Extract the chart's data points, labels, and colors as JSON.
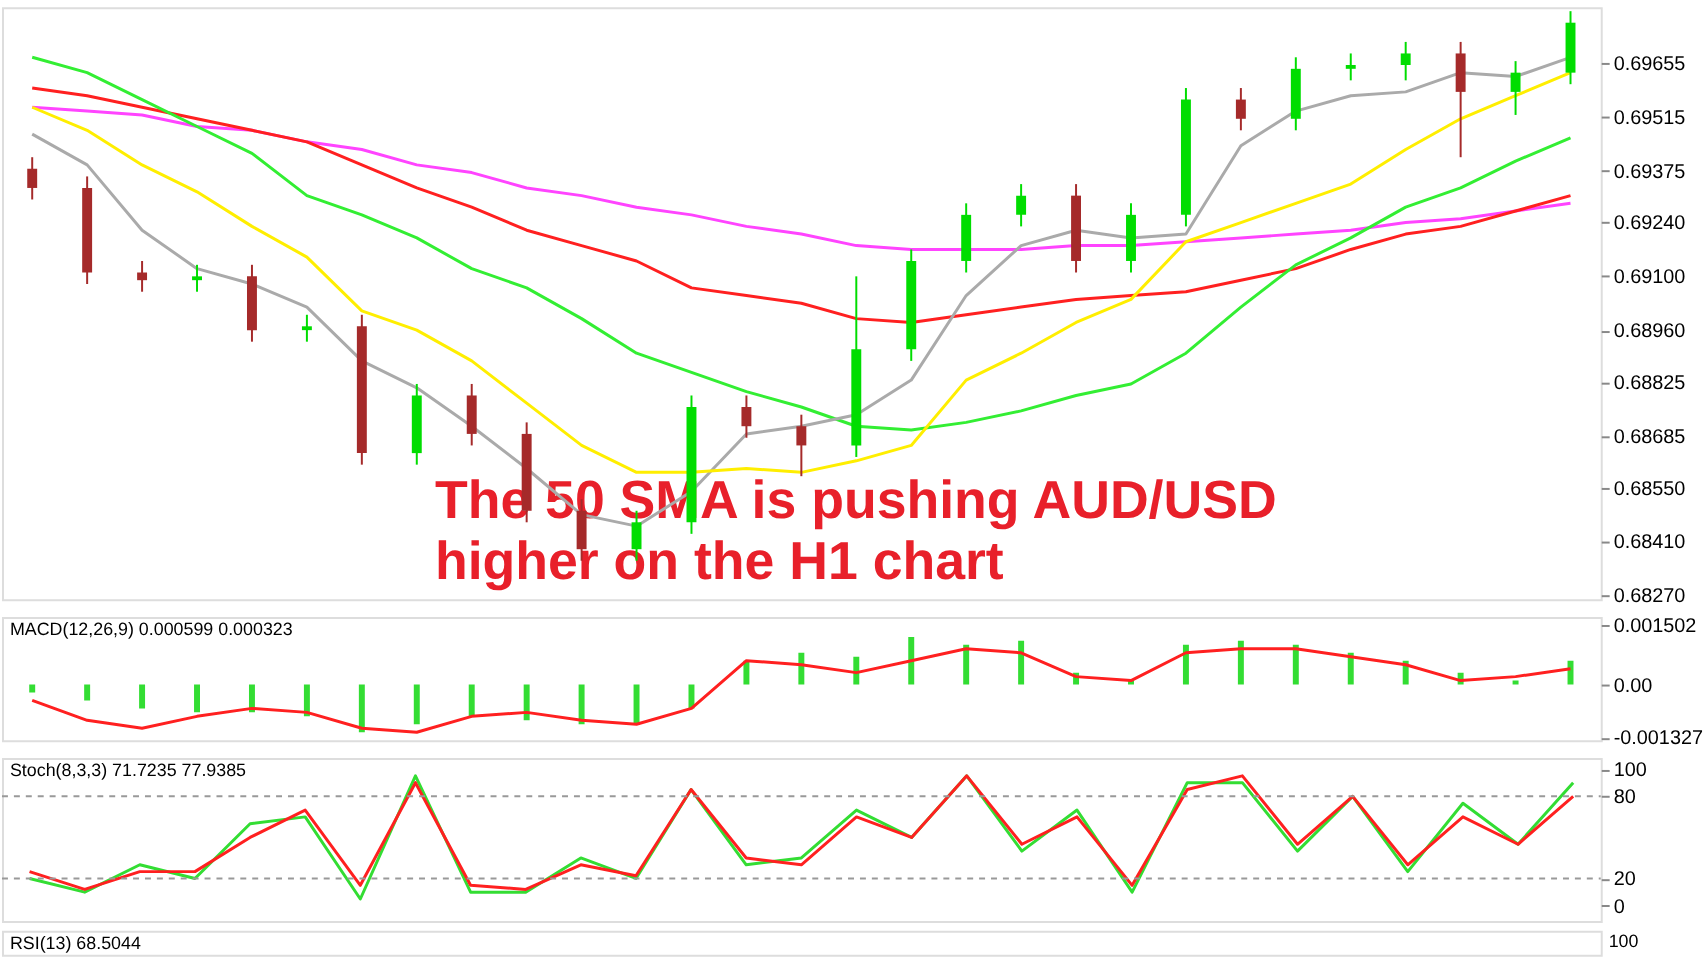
{
  "chart_data": [
    {
      "type": "candlestick",
      "categories": [
        null,
        null,
        null,
        null,
        null,
        null,
        null,
        null,
        null,
        null,
        null,
        null,
        null,
        null,
        null,
        null,
        null,
        null,
        null,
        null,
        null,
        null,
        null,
        null,
        null,
        null,
        null,
        null,
        null
      ],
      "ohlc": [
        [
          0.6938,
          0.6941,
          0.693,
          0.6933
        ],
        [
          0.6933,
          0.6936,
          0.6908,
          0.6911
        ],
        [
          0.6911,
          0.6914,
          0.6906,
          0.6909
        ],
        [
          0.6909,
          0.6913,
          0.6906,
          0.691
        ],
        [
          0.691,
          0.6913,
          0.6893,
          0.6896
        ],
        [
          0.6896,
          0.69,
          0.6893,
          0.6897
        ],
        [
          0.6897,
          0.69,
          0.6861,
          0.6864
        ],
        [
          0.6864,
          0.6882,
          0.6861,
          0.6879
        ],
        [
          0.6879,
          0.6882,
          0.6866,
          0.6869
        ],
        [
          0.6869,
          0.6872,
          0.6846,
          0.6849
        ],
        [
          0.6849,
          0.6852,
          0.6836,
          0.6839
        ],
        [
          0.6839,
          0.6849,
          0.6836,
          0.6846
        ],
        [
          0.6846,
          0.6879,
          0.6843,
          0.6876
        ],
        [
          0.6876,
          0.6879,
          0.6868,
          0.6871
        ],
        [
          0.6871,
          0.6874,
          0.6858,
          0.6866
        ],
        [
          0.6866,
          0.691,
          0.6863,
          0.6891
        ],
        [
          0.6891,
          0.6917,
          0.6888,
          0.6914
        ],
        [
          0.6914,
          0.6929,
          0.6911,
          0.6926
        ],
        [
          0.6926,
          0.6934,
          0.6923,
          0.6931
        ],
        [
          0.6931,
          0.6934,
          0.6911,
          0.6914
        ],
        [
          0.6914,
          0.6929,
          0.6911,
          0.6926
        ],
        [
          0.6926,
          0.6959,
          0.6923,
          0.6956
        ],
        [
          0.6956,
          0.6959,
          0.6948,
          0.6951
        ],
        [
          0.6951,
          0.6967,
          0.6948,
          0.6964
        ],
        [
          0.6964,
          0.6968,
          0.6961,
          0.6965
        ],
        [
          0.6965,
          0.6971,
          0.6961,
          0.6968
        ],
        [
          0.6968,
          0.6971,
          0.6941,
          0.6958
        ],
        [
          0.6958,
          0.6966,
          0.6952,
          0.6963
        ],
        [
          0.6963,
          0.6979,
          0.696,
          0.6976
        ]
      ],
      "colors": [
        "#a52a2a",
        "#a52a2a",
        "#a52a2a",
        "#00dd00",
        "#a52a2a",
        "#00dd00",
        "#a52a2a",
        "#00dd00",
        "#a52a2a",
        "#a52a2a",
        "#a52a2a",
        "#00dd00",
        "#00dd00",
        "#a52a2a",
        "#a52a2a",
        "#00dd00",
        "#00dd00",
        "#00dd00",
        "#00dd00",
        "#a52a2a",
        "#00dd00",
        "#00dd00",
        "#a52a2a",
        "#00dd00",
        "#00dd00",
        "#00dd00",
        "#a52a2a",
        "#00dd00",
        "#00dd00"
      ],
      "series": [
        {
          "type": "line",
          "color": "#ff44ff",
          "values": [
            0.6954,
            0.6953,
            0.6952,
            0.6949,
            0.6948,
            0.6945,
            0.6943,
            0.6939,
            0.6937,
            0.6933,
            0.6931,
            0.6928,
            0.6926,
            0.6923,
            0.6921,
            0.6918,
            0.6917,
            0.6917,
            0.6917,
            0.6918,
            0.6918,
            0.6919,
            0.692,
            0.6921,
            0.6922,
            0.6924,
            0.6925,
            0.6927,
            0.6929
          ]
        },
        {
          "type": "line",
          "color": "#ff2020",
          "values": [
            0.6959,
            0.6957,
            0.6954,
            0.6951,
            0.6948,
            0.6945,
            0.6939,
            0.6933,
            0.6928,
            0.6922,
            0.6918,
            0.6914,
            0.6907,
            0.6905,
            0.6903,
            0.6899,
            0.6898,
            0.69,
            0.6902,
            0.6904,
            0.6905,
            0.6906,
            0.6909,
            0.6912,
            0.6917,
            0.6921,
            0.6923,
            0.6927,
            0.6931
          ]
        },
        {
          "type": "line",
          "color": "#33ee33",
          "values": [
            0.6967,
            0.6963,
            0.6956,
            0.6949,
            0.6942,
            0.6931,
            0.6926,
            0.692,
            0.6912,
            0.6907,
            0.6899,
            0.689,
            0.6885,
            0.688,
            0.6876,
            0.6871,
            0.687,
            0.6872,
            0.6875,
            0.6879,
            0.6882,
            0.689,
            0.6902,
            0.6913,
            0.692,
            0.6928,
            0.6933,
            0.694,
            0.6946
          ]
        },
        {
          "type": "line",
          "color": "#aaaaaa",
          "values": [
            0.6947,
            0.6939,
            0.6922,
            0.6912,
            0.6908,
            0.6902,
            0.6888,
            0.6881,
            0.6871,
            0.686,
            0.6848,
            0.6845,
            0.6854,
            0.6869,
            0.6871,
            0.6874,
            0.6883,
            0.6905,
            0.6918,
            0.6922,
            0.692,
            0.6921,
            0.6944,
            0.6953,
            0.6957,
            0.6958,
            0.6963,
            0.6962,
            0.6967
          ]
        },
        {
          "type": "line",
          "color": "#ffee00",
          "values": [
            0.6954,
            0.6948,
            0.6939,
            0.6932,
            0.6923,
            0.6915,
            0.6901,
            0.6896,
            0.6888,
            0.6877,
            0.6866,
            0.6859,
            0.6859,
            0.686,
            0.6859,
            0.6862,
            0.6866,
            0.6883,
            0.689,
            0.6898,
            0.6904,
            0.6919,
            0.6924,
            0.6929,
            0.6934,
            0.6943,
            0.6951,
            0.6957,
            0.6963
          ]
        }
      ],
      "ylim": [
        0.6826,
        0.698
      ],
      "yticks": [
        {
          "value": 0.69655,
          "label": "0.69655"
        },
        {
          "value": 0.69515,
          "label": "0.69515"
        },
        {
          "value": 0.69375,
          "label": "0.69375"
        },
        {
          "value": 0.6924,
          "label": "0.69240"
        },
        {
          "value": 0.691,
          "label": "0.69100"
        },
        {
          "value": 0.6896,
          "label": "0.68960"
        },
        {
          "value": 0.68825,
          "label": "0.68825"
        },
        {
          "value": 0.68685,
          "label": "0.68685"
        },
        {
          "value": 0.6855,
          "label": "0.68550"
        },
        {
          "value": 0.6841,
          "label": "0.68410"
        },
        {
          "value": 0.6827,
          "label": "0.68270"
        }
      ],
      "tick_labels": "y",
      "annotations": [
        "The 50 SMA is pushing AUD/USD\nhigher on the H1 chart"
      ]
    },
    {
      "type": "bar",
      "title": "MACD(12,26,9) 0.000599 0.000323",
      "categories": [
        null,
        null,
        null,
        null,
        null,
        null,
        null,
        null,
        null,
        null,
        null,
        null,
        null,
        null,
        null,
        null,
        null,
        null,
        null,
        null,
        null,
        null,
        null,
        null,
        null,
        null,
        null,
        null,
        null
      ],
      "series": [
        {
          "type": "bar",
          "color": "#33dd33",
          "values": [
            -0.0002,
            -0.0004,
            -0.0006,
            -0.0007,
            -0.0007,
            -0.0008,
            -0.0012,
            -0.001,
            -0.0008,
            -0.0009,
            -0.001,
            -0.001,
            -0.0006,
            0.0006,
            0.0008,
            0.0007,
            0.0012,
            0.001,
            0.0011,
            0.0003,
            0.0001,
            0.001,
            0.0011,
            0.001,
            0.0008,
            0.0006,
            0.0003,
            0.0001,
            0.0006
          ]
        },
        {
          "type": "line",
          "color": "#ff2020",
          "values": [
            -0.0004,
            -0.0009,
            -0.0011,
            -0.0008,
            -0.0006,
            -0.0007,
            -0.0011,
            -0.0012,
            -0.0008,
            -0.0007,
            -0.0009,
            -0.001,
            -0.0006,
            0.0006,
            0.0005,
            0.0003,
            0.0006,
            0.0009,
            0.0008,
            0.0002,
            0.0001,
            0.0008,
            0.0009,
            0.0009,
            0.0007,
            0.0005,
            0.0001,
            0.0002,
            0.0004
          ]
        }
      ],
      "ylim": [
        -0.0014,
        0.0017
      ],
      "yticks": [
        {
          "value": 0.001502,
          "label": "0.001502"
        },
        {
          "value": 0,
          "label": "0.00"
        },
        {
          "value": -0.001327,
          "label": "-0.001327"
        }
      ],
      "tick_labels": "y"
    },
    {
      "type": "line",
      "title": "Stoch(8,3,3) 71.7235 77.9385",
      "categories": [
        null,
        null,
        null,
        null,
        null,
        null,
        null,
        null,
        null,
        null,
        null,
        null,
        null,
        null,
        null,
        null,
        null,
        null,
        null,
        null,
        null,
        null,
        null,
        null,
        null,
        null,
        null,
        null,
        null
      ],
      "series": [
        {
          "color": "#33dd33",
          "values": [
            20,
            10,
            30,
            20,
            60,
            65,
            5,
            95,
            10,
            10,
            35,
            20,
            85,
            30,
            35,
            70,
            50,
            95,
            40,
            70,
            10,
            90,
            90,
            40,
            80,
            25,
            75,
            45,
            90
          ]
        },
        {
          "color": "#ff2020",
          "values": [
            25,
            12,
            25,
            25,
            50,
            70,
            15,
            90,
            15,
            12,
            30,
            22,
            85,
            35,
            30,
            65,
            50,
            95,
            45,
            65,
            15,
            85,
            95,
            45,
            80,
            30,
            65,
            45,
            80
          ]
        }
      ],
      "ylim": [
        -11,
        108
      ],
      "yticks": [
        0,
        20,
        80,
        100
      ],
      "ref_lines": [
        {
          "axis": "y",
          "value": 80,
          "color": "#999999",
          "line_style": "dashed"
        },
        {
          "axis": "y",
          "value": 20,
          "color": "#999999",
          "line_style": "dashed"
        }
      ],
      "tick_labels": "y"
    },
    {
      "type": "other",
      "title": "RSI(13) 68.5044",
      "annotations": [
        "100"
      ]
    }
  ]
}
